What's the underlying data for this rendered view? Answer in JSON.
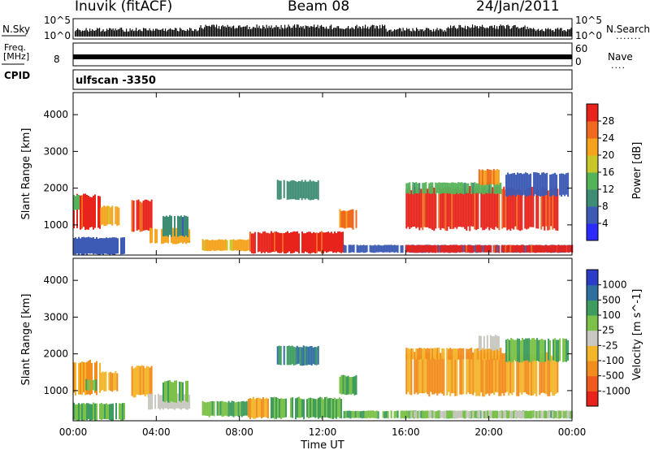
{
  "header": {
    "station": "Inuvik (fitACF)",
    "beam": "Beam 08",
    "date": "24/Jan/2011"
  },
  "panels": {
    "nsky_label": "N.Sky",
    "nsearch_label": "N.Search",
    "nsky_ticks": [
      "10^5",
      "10^0"
    ],
    "nsearch_ticks": [
      "10^5",
      "10^0"
    ],
    "freq_label_line1": "Freq.",
    "freq_label_line2": "[MHz]",
    "freq_tick": "8",
    "nave_label": "Nave",
    "nave_ticks": [
      "60",
      "0"
    ],
    "cpid_label": "CPID",
    "cpid_value": "ulfscan -3350"
  },
  "colors": {
    "power_scale": [
      "#2b2bff",
      "#3d5bb4",
      "#3e8c74",
      "#55b35a",
      "#c9c62a",
      "#f5a21c",
      "#ef6a1e",
      "#e8231c"
    ],
    "velocity_scale": [
      "#e8231c",
      "#ef5a1e",
      "#f28c1c",
      "#f3b62a",
      "#c8c8c0",
      "#7cc24a",
      "#3e9c5e",
      "#2f6fa0",
      "#2b3cc8"
    ]
  },
  "chart_data": [
    {
      "type": "heatmap",
      "title": "",
      "xlabel": "",
      "ylabel": "Slant Range [km]",
      "x_ticks": [
        "00:00",
        "04:00",
        "08:00",
        "12:00",
        "16:00",
        "20:00",
        "00:00"
      ],
      "y_ticks": [
        "1000",
        "2000",
        "3000",
        "4000"
      ],
      "xlim_hours": [
        0,
        24
      ],
      "ylim_km": [
        180,
        4600
      ],
      "colorbar": {
        "label": "Power [dB]",
        "ticks": [
          "28",
          "24",
          "20",
          "16",
          "12",
          "8",
          "4"
        ],
        "range": [
          0,
          30
        ]
      },
      "regions": [
        {
          "t0": 0.0,
          "t1": 1.3,
          "r0": 900,
          "r1": 1800,
          "value": 28
        },
        {
          "t0": 0.0,
          "t1": 0.3,
          "r0": 1400,
          "r1": 1800,
          "value": 14
        },
        {
          "t0": 1.3,
          "t1": 2.2,
          "r0": 1000,
          "r1": 1500,
          "value": 20
        },
        {
          "t0": 2.8,
          "t1": 3.8,
          "r0": 850,
          "r1": 1650,
          "value": 28
        },
        {
          "t0": 3.6,
          "t1": 5.6,
          "r0": 500,
          "r1": 900,
          "value": 20
        },
        {
          "t0": 4.3,
          "t1": 5.5,
          "r0": 700,
          "r1": 1250,
          "value": 8
        },
        {
          "t0": 6.2,
          "t1": 8.4,
          "r0": 300,
          "r1": 600,
          "value": 20
        },
        {
          "t0": 8.4,
          "t1": 9.5,
          "r0": 250,
          "r1": 800,
          "value": 28
        },
        {
          "t0": 9.5,
          "t1": 13.0,
          "r0": 250,
          "r1": 800,
          "value": 28
        },
        {
          "t0": 9.8,
          "t1": 11.8,
          "r0": 1700,
          "r1": 2200,
          "value": 10
        },
        {
          "t0": 12.8,
          "t1": 13.6,
          "r0": 900,
          "r1": 1400,
          "value": 24
        },
        {
          "t0": 13.0,
          "t1": 24.0,
          "r0": 250,
          "r1": 450,
          "value": 6
        },
        {
          "t0": 16.0,
          "t1": 23.3,
          "r0": 900,
          "r1": 2000,
          "value": 28
        },
        {
          "t0": 16.0,
          "t1": 20.6,
          "r0": 1850,
          "r1": 2150,
          "value": 12
        },
        {
          "t0": 19.5,
          "t1": 20.5,
          "r0": 2100,
          "r1": 2500,
          "value": 22
        },
        {
          "t0": 20.8,
          "t1": 23.8,
          "r0": 1800,
          "r1": 2400,
          "value": 6
        },
        {
          "t0": 16.0,
          "t1": 24.0,
          "r0": 250,
          "r1": 450,
          "value": 28
        },
        {
          "t0": 0.0,
          "t1": 2.5,
          "r0": 200,
          "r1": 650,
          "value": 6
        }
      ]
    },
    {
      "type": "heatmap",
      "title": "",
      "xlabel": "Time UT",
      "ylabel": "Slant Range [km]",
      "x_ticks": [
        "00:00",
        "04:00",
        "08:00",
        "12:00",
        "16:00",
        "20:00",
        "00:00"
      ],
      "y_ticks": [
        "1000",
        "2000",
        "3000",
        "4000"
      ],
      "xlim_hours": [
        0,
        24
      ],
      "ylim_km": [
        180,
        4600
      ],
      "colorbar": {
        "label": "Velocity [m s^-1]",
        "ticks": [
          "1000",
          "500",
          "100",
          "25",
          "-25",
          "-100",
          "-500",
          "-1000"
        ],
        "range": [
          -1000,
          1000
        ]
      },
      "regions": [
        {
          "t0": 0.0,
          "t1": 1.3,
          "r0": 900,
          "r1": 1800,
          "value": -100
        },
        {
          "t0": 0.6,
          "t1": 1.1,
          "r0": 1000,
          "r1": 1300,
          "value": 100
        },
        {
          "t0": 1.3,
          "t1": 2.2,
          "r0": 1000,
          "r1": 1500,
          "value": -100
        },
        {
          "t0": 2.8,
          "t1": 3.8,
          "r0": 850,
          "r1": 1650,
          "value": -100
        },
        {
          "t0": 3.6,
          "t1": 5.6,
          "r0": 500,
          "r1": 900,
          "value": 0
        },
        {
          "t0": 4.3,
          "t1": 5.5,
          "r0": 700,
          "r1": 1250,
          "value": 100
        },
        {
          "t0": 6.2,
          "t1": 8.4,
          "r0": 300,
          "r1": 700,
          "value": 100
        },
        {
          "t0": 8.4,
          "t1": 9.5,
          "r0": 250,
          "r1": 800,
          "value": -100
        },
        {
          "t0": 9.5,
          "t1": 13.0,
          "r0": 250,
          "r1": 800,
          "value": 100
        },
        {
          "t0": 9.8,
          "t1": 11.8,
          "r0": 1700,
          "r1": 2200,
          "value": 500
        },
        {
          "t0": 12.8,
          "t1": 13.6,
          "r0": 900,
          "r1": 1400,
          "value": 100
        },
        {
          "t0": 13.0,
          "t1": 24.0,
          "r0": 250,
          "r1": 450,
          "value": 100
        },
        {
          "t0": 16.0,
          "t1": 23.3,
          "r0": 900,
          "r1": 2000,
          "value": -100
        },
        {
          "t0": 16.0,
          "t1": 20.6,
          "r0": 1850,
          "r1": 2150,
          "value": -100
        },
        {
          "t0": 19.5,
          "t1": 20.5,
          "r0": 2100,
          "r1": 2500,
          "value": 0
        },
        {
          "t0": 20.8,
          "t1": 23.8,
          "r0": 1800,
          "r1": 2400,
          "value": 100
        },
        {
          "t0": 16.0,
          "t1": 24.0,
          "r0": 250,
          "r1": 450,
          "value": 25
        },
        {
          "t0": 0.0,
          "t1": 2.5,
          "r0": 200,
          "r1": 650,
          "value": 100
        }
      ]
    }
  ]
}
